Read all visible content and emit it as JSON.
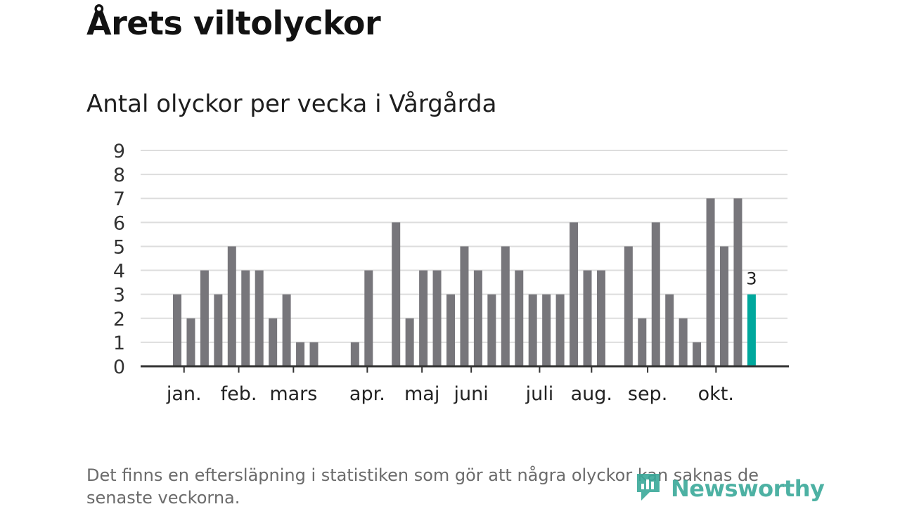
{
  "title": "Årets viltolyckor",
  "subtitle": "Antal olyckor per vecka i Vårgårda",
  "footnote": "Det finns en eftersläpning i statistiken som gör att några olyckor kan saknas de senaste veckorna.",
  "brand": {
    "name": "Newsworthy",
    "logo_icon": "newsworthy-logo-icon"
  },
  "colors": {
    "bar": "#77767b",
    "highlight": "#00a89d",
    "grid": "#dddddd",
    "axis": "#333333",
    "brand": "#3aa99a"
  },
  "chart_data": {
    "type": "bar",
    "title": "",
    "xlabel": "",
    "ylabel": "",
    "ylim": [
      0,
      9
    ],
    "yticks": [
      0,
      1,
      2,
      3,
      4,
      5,
      6,
      7,
      8,
      9
    ],
    "grid": true,
    "x_start_week": 1,
    "values": [
      3,
      2,
      4,
      3,
      5,
      4,
      4,
      2,
      3,
      1,
      1,
      0,
      0,
      1,
      4,
      0,
      6,
      2,
      4,
      4,
      3,
      5,
      4,
      3,
      5,
      4,
      3,
      3,
      3,
      6,
      4,
      4,
      0,
      5,
      2,
      6,
      3,
      2,
      1,
      7,
      5,
      7,
      3
    ],
    "highlight_index": 42,
    "highlight_label": "3",
    "month_labels": [
      {
        "label": "jan.",
        "at_week": 1.5
      },
      {
        "label": "feb.",
        "at_week": 5.5
      },
      {
        "label": "mars",
        "at_week": 9.5
      },
      {
        "label": "apr.",
        "at_week": 14.9
      },
      {
        "label": "maj",
        "at_week": 18.9
      },
      {
        "label": "juni",
        "at_week": 22.5
      },
      {
        "label": "juli",
        "at_week": 27.5
      },
      {
        "label": "aug.",
        "at_week": 31.3
      },
      {
        "label": "sep.",
        "at_week": 35.4
      },
      {
        "label": "okt.",
        "at_week": 40.4
      }
    ]
  }
}
